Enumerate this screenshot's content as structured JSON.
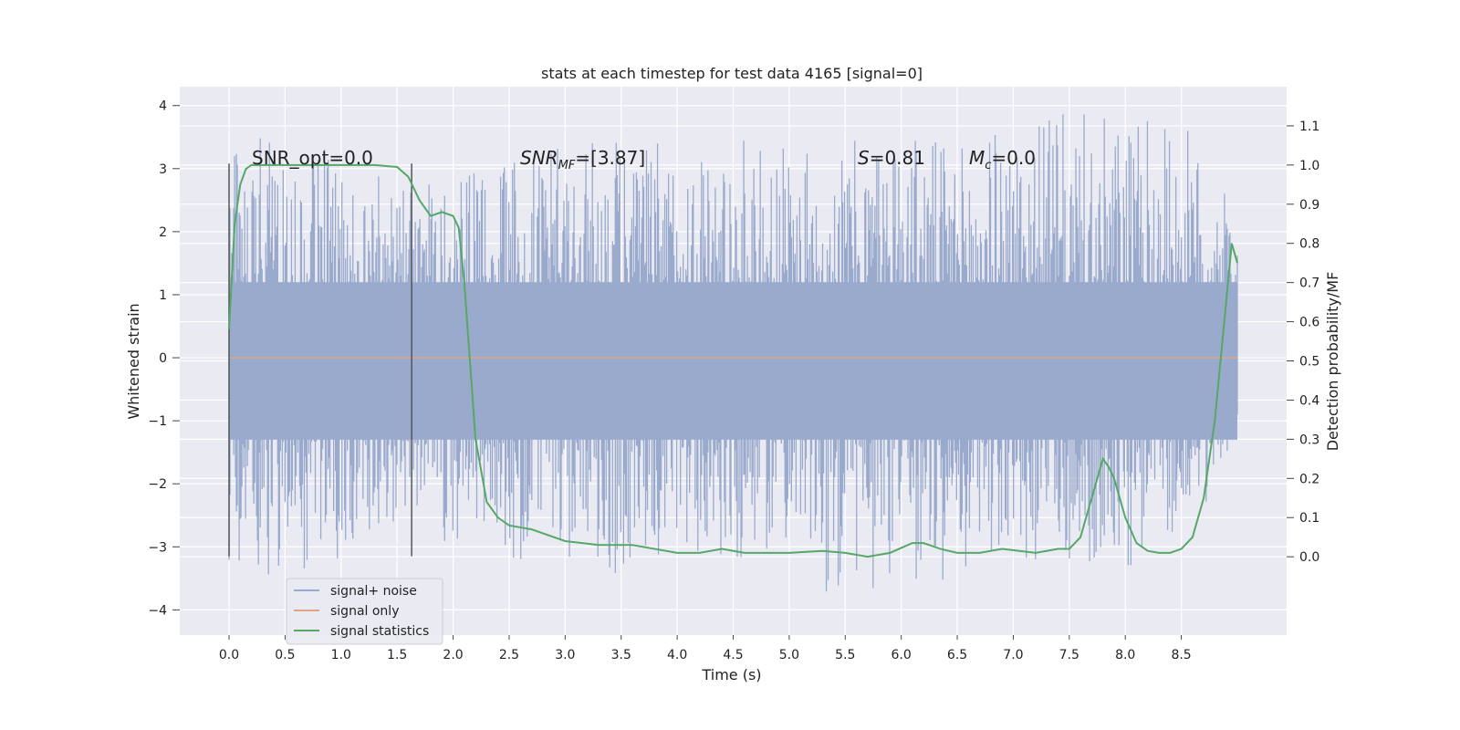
{
  "chart_data": {
    "type": "line",
    "title": "stats at each timestep for test data 4165 [signal=0]",
    "xlabel": "Time (s)",
    "ylabel_left": "Whitened strain",
    "ylabel_right": "Detection probability/MF",
    "xlim": [
      -0.44,
      9.44
    ],
    "ylim_left": [
      -4.4,
      4.3
    ],
    "ylim_right": [
      -0.2,
      1.2
    ],
    "xticks": [
      "0.0",
      "0.5",
      "1.0",
      "1.5",
      "2.0",
      "2.5",
      "3.0",
      "3.5",
      "4.0",
      "4.5",
      "5.0",
      "5.5",
      "6.0",
      "6.5",
      "7.0",
      "7.5",
      "8.0",
      "8.5"
    ],
    "yticks_left": [
      "4",
      "3",
      "2",
      "1",
      "0",
      "−1",
      "−2",
      "−3",
      "−4"
    ],
    "yticks_right": [
      "1.1",
      "1.0",
      "0.9",
      "0.8",
      "0.7",
      "0.6",
      "0.5",
      "0.4",
      "0.3",
      "0.2",
      "0.1",
      "0.0"
    ],
    "grid": true,
    "legend_placement": "lower-left",
    "annotations": {
      "snr_opt": "SNR_opt=0.0",
      "snr_mf_main": "SNR",
      "snr_mf_sub": "MF",
      "snr_mf_value": "=[3.87]",
      "s_sym": "S",
      "s_value": "=0.81",
      "mc_main": "M",
      "mc_sub": "c",
      "mc_value": "=0.0"
    },
    "markers_x": [
      0.0,
      1.63
    ],
    "markers_range_left": [
      -3.15,
      3.08
    ],
    "series": [
      {
        "name": "signal+ noise",
        "color": "#9aaacd",
        "axis": "left",
        "x_range": [
          0.0,
          9.0
        ],
        "envelope": {
          "x": [
            0,
            0.5,
            1,
            1.5,
            2,
            2.5,
            3,
            3.5,
            4,
            4.5,
            5,
            5.5,
            6,
            6.5,
            7,
            7.5,
            8,
            8.5,
            9
          ],
          "upper": [
            3.7,
            3.4,
            3.3,
            2.7,
            3.0,
            3.1,
            3.4,
            3.5,
            3.4,
            3.5,
            3.3,
            3.4,
            3.7,
            3.4,
            3.7,
            3.9,
            3.8,
            3.8,
            2.3
          ],
          "lower": [
            -3.8,
            -3.5,
            -3.3,
            -2.6,
            -3.0,
            -3.2,
            -3.2,
            -3.5,
            -3.1,
            -3.2,
            -3.2,
            -4.0,
            -3.9,
            -3.4,
            -3.2,
            -3.3,
            -3.3,
            -3.2,
            -1.2
          ]
        }
      },
      {
        "name": "signal only",
        "color": "#e0a48a",
        "axis": "left",
        "x": [
          0.0,
          9.0
        ],
        "y": [
          0.0,
          0.0
        ]
      },
      {
        "name": "signal statistics",
        "color": "#55a868",
        "axis": "right",
        "x": [
          0.0,
          0.05,
          0.1,
          0.15,
          0.2,
          0.3,
          0.5,
          0.8,
          1.0,
          1.3,
          1.5,
          1.6,
          1.7,
          1.8,
          1.9,
          2.0,
          2.05,
          2.1,
          2.15,
          2.2,
          2.3,
          2.4,
          2.5,
          2.7,
          3.0,
          3.3,
          3.6,
          3.8,
          4.0,
          4.2,
          4.4,
          4.6,
          4.8,
          5.0,
          5.3,
          5.5,
          5.7,
          5.9,
          6.1,
          6.2,
          6.35,
          6.5,
          6.7,
          6.9,
          7.2,
          7.4,
          7.5,
          7.6,
          7.65,
          7.75,
          7.8,
          7.85,
          7.9,
          8.0,
          8.1,
          8.2,
          8.3,
          8.4,
          8.5,
          8.6,
          8.7,
          8.8,
          8.9,
          8.95,
          9.0
        ],
        "y": [
          0.58,
          0.85,
          0.95,
          0.99,
          1.0,
          1.0,
          1.0,
          1.0,
          1.0,
          1.0,
          0.995,
          0.97,
          0.91,
          0.87,
          0.88,
          0.87,
          0.84,
          0.7,
          0.5,
          0.3,
          0.14,
          0.1,
          0.08,
          0.07,
          0.04,
          0.03,
          0.03,
          0.02,
          0.01,
          0.01,
          0.02,
          0.01,
          0.01,
          0.01,
          0.015,
          0.01,
          0.0,
          0.01,
          0.035,
          0.035,
          0.02,
          0.01,
          0.01,
          0.02,
          0.01,
          0.02,
          0.02,
          0.05,
          0.1,
          0.2,
          0.25,
          0.23,
          0.2,
          0.1,
          0.035,
          0.015,
          0.01,
          0.01,
          0.02,
          0.05,
          0.15,
          0.35,
          0.65,
          0.8,
          0.75
        ]
      }
    ]
  }
}
